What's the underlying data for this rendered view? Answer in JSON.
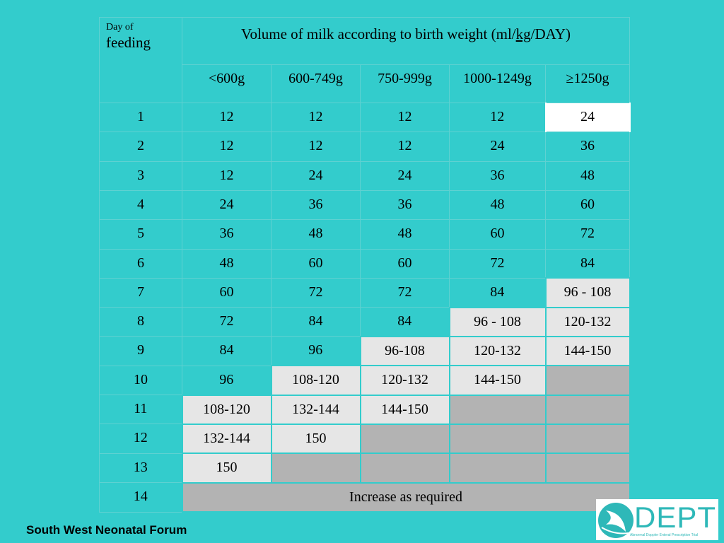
{
  "header": {
    "day_small": "Day of",
    "day_big": "feeding",
    "title_prefix": "Volume of milk according to birth weight (ml/",
    "title_unit": "kg",
    "title_suffix": "/DAY)",
    "columns": [
      "<600g",
      "600-749g",
      "750-999g",
      "1000-1249g",
      "≥1250g"
    ]
  },
  "rows": [
    {
      "day": "1",
      "cells": [
        "12",
        "12",
        "12",
        "12",
        "24"
      ],
      "styles": [
        "",
        "",
        "",
        "",
        "white"
      ]
    },
    {
      "day": "2",
      "cells": [
        "12",
        "12",
        "12",
        "24",
        "36"
      ],
      "styles": [
        "",
        "",
        "",
        "",
        ""
      ]
    },
    {
      "day": "3",
      "cells": [
        "12",
        "24",
        "24",
        "36",
        "48"
      ],
      "styles": [
        "",
        "",
        "",
        "",
        ""
      ]
    },
    {
      "day": "4",
      "cells": [
        "24",
        "36",
        "36",
        "48",
        "60"
      ],
      "styles": [
        "",
        "",
        "",
        "",
        ""
      ]
    },
    {
      "day": "5",
      "cells": [
        "36",
        "48",
        "48",
        "60",
        "72"
      ],
      "styles": [
        "",
        "",
        "",
        "",
        ""
      ]
    },
    {
      "day": "6",
      "cells": [
        "48",
        "60",
        "60",
        "72",
        "84"
      ],
      "styles": [
        "",
        "",
        "",
        "",
        ""
      ]
    },
    {
      "day": "7",
      "cells": [
        "60",
        "72",
        "72",
        "84",
        "96 - 108"
      ],
      "styles": [
        "",
        "",
        "",
        "",
        "light"
      ]
    },
    {
      "day": "8",
      "cells": [
        "72",
        "84",
        "84",
        "96 - 108",
        "120-132"
      ],
      "styles": [
        "",
        "",
        "",
        "light",
        "light"
      ]
    },
    {
      "day": "9",
      "cells": [
        "84",
        "96",
        "96-108",
        "120-132",
        "144-150"
      ],
      "styles": [
        "",
        "",
        "light",
        "light",
        "light"
      ]
    },
    {
      "day": "10",
      "cells": [
        "96",
        "108-120",
        "120-132",
        "144-150",
        ""
      ],
      "styles": [
        "",
        "light",
        "light",
        "light",
        "grey"
      ]
    },
    {
      "day": "11",
      "cells": [
        "108-120",
        "132-144",
        "144-150",
        "",
        ""
      ],
      "styles": [
        "light",
        "light",
        "light",
        "grey",
        "grey"
      ]
    },
    {
      "day": "12",
      "cells": [
        "132-144",
        "150",
        "",
        "",
        ""
      ],
      "styles": [
        "light",
        "light",
        "grey",
        "grey",
        "grey"
      ]
    },
    {
      "day": "13",
      "cells": [
        "150",
        "",
        "",
        "",
        ""
      ],
      "styles": [
        "light",
        "grey",
        "grey",
        "grey",
        "grey"
      ]
    }
  ],
  "last_row": {
    "day": "14",
    "text": "Increase as required"
  },
  "footer": {
    "organisation": "South West Neonatal Forum"
  },
  "logo": {
    "word": "DEPT",
    "subtitle": "Abnormal Doppler Enteral Prescription Trial",
    "icon": "stork-emblem-icon",
    "color": "#2eb8b8"
  },
  "colors": {
    "background": "#33cccc",
    "light_cell": "#e6e6e6",
    "grey_cell": "#b3b3b3"
  }
}
